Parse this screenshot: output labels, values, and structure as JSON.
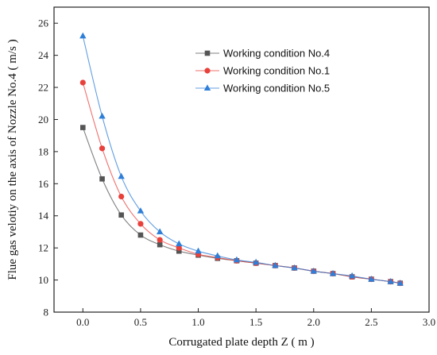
{
  "chart_data": {
    "type": "line",
    "title": "",
    "xlabel": "Corrugated plate depth Z ( m )",
    "ylabel": "Flue gas velotiy on the axis of Nozzle No.4 ( m/s )",
    "xlim": [
      -0.25,
      3.0
    ],
    "ylim": [
      8,
      27
    ],
    "xticks": [
      0.0,
      0.5,
      1.0,
      1.5,
      2.0,
      2.5,
      3.0
    ],
    "xtick_labels": [
      "0.0",
      "0.5",
      "1.0",
      "1.5",
      "2.0",
      "2.5",
      "3.0"
    ],
    "yticks": [
      8,
      10,
      12,
      14,
      16,
      18,
      20,
      22,
      24,
      26
    ],
    "ytick_labels": [
      "8",
      "10",
      "12",
      "14",
      "16",
      "18",
      "20",
      "22",
      "24",
      "26"
    ],
    "grid": false,
    "legend_position": "top-right",
    "series": [
      {
        "name": "Working  condition No.4",
        "color": "#555555",
        "marker": "square",
        "x": [
          0.0,
          0.167,
          0.333,
          0.5,
          0.667,
          0.833,
          1.0,
          1.167,
          1.333,
          1.5,
          1.667,
          1.833,
          2.0,
          2.167,
          2.333,
          2.5,
          2.667,
          2.75
        ],
        "y": [
          19.5,
          16.3,
          14.05,
          12.8,
          12.2,
          11.8,
          11.55,
          11.35,
          11.2,
          11.05,
          10.9,
          10.75,
          10.55,
          10.4,
          10.2,
          10.05,
          9.9,
          9.8
        ]
      },
      {
        "name": "Working  condition No.1",
        "color": "#e8413c",
        "marker": "circle",
        "x": [
          0.0,
          0.167,
          0.333,
          0.5,
          0.667,
          0.833,
          1.0,
          1.167,
          1.333,
          1.5,
          1.667,
          1.833,
          2.0,
          2.167,
          2.333,
          2.5,
          2.667,
          2.75
        ],
        "y": [
          22.3,
          18.2,
          15.2,
          13.5,
          12.5,
          12.0,
          11.6,
          11.4,
          11.2,
          11.05,
          10.9,
          10.75,
          10.55,
          10.4,
          10.2,
          10.05,
          9.9,
          9.8
        ]
      },
      {
        "name": "Working  condition No.5",
        "color": "#2f7fd8",
        "marker": "triangle",
        "x": [
          0.0,
          0.167,
          0.333,
          0.5,
          0.667,
          0.833,
          1.0,
          1.167,
          1.333,
          1.5,
          1.667,
          1.833,
          2.0,
          2.167,
          2.333,
          2.5,
          2.667,
          2.75
        ],
        "y": [
          25.2,
          20.2,
          16.45,
          14.3,
          13.0,
          12.25,
          11.8,
          11.5,
          11.25,
          11.1,
          10.9,
          10.75,
          10.55,
          10.4,
          10.25,
          10.05,
          9.9,
          9.8
        ]
      }
    ]
  }
}
